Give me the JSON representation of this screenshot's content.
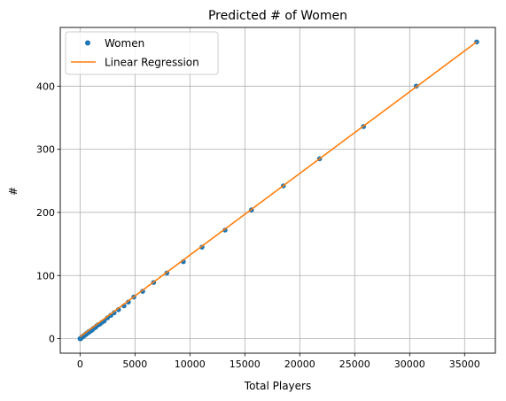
{
  "chart_data": {
    "type": "scatter",
    "title": "Predicted # of Women",
    "xlabel": "Total Players",
    "ylabel": "#",
    "xlim": [
      -1800,
      37800
    ],
    "ylim": [
      -23,
      493
    ],
    "xticks": [
      0,
      5000,
      10000,
      15000,
      20000,
      25000,
      30000,
      35000
    ],
    "yticks": [
      0,
      100,
      200,
      300,
      400
    ],
    "grid": true,
    "legend_position": "top-left",
    "series": [
      {
        "name": "Women",
        "kind": "markers",
        "color": "#1f77b4",
        "x": [
          0,
          50,
          100,
          150,
          200,
          250,
          300,
          350,
          400,
          450,
          500,
          550,
          600,
          650,
          700,
          750,
          800,
          850,
          900,
          950,
          1000,
          1100,
          1200,
          1300,
          1400,
          1500,
          1650,
          1800,
          2000,
          2200,
          2500,
          2800,
          3100,
          3500,
          4000,
          4400,
          4900,
          5700,
          6700,
          7900,
          9400,
          11100,
          13200,
          15600,
          18500,
          21800,
          25800,
          30600,
          36100
        ],
        "y": [
          0,
          0,
          1,
          2,
          3,
          3,
          4,
          5,
          5,
          6,
          7,
          7,
          8,
          9,
          9,
          10,
          11,
          11,
          12,
          12,
          13,
          14,
          16,
          17,
          18,
          20,
          22,
          23,
          26,
          28,
          33,
          37,
          41,
          46,
          52,
          58,
          66,
          75,
          89,
          104,
          122,
          145,
          172,
          204,
          242,
          285,
          336,
          400,
          470
        ]
      },
      {
        "name": "Linear Regression",
        "kind": "line",
        "color": "#ff7f0e",
        "x": [
          0,
          36100
        ],
        "y": [
          3,
          470
        ]
      }
    ]
  }
}
